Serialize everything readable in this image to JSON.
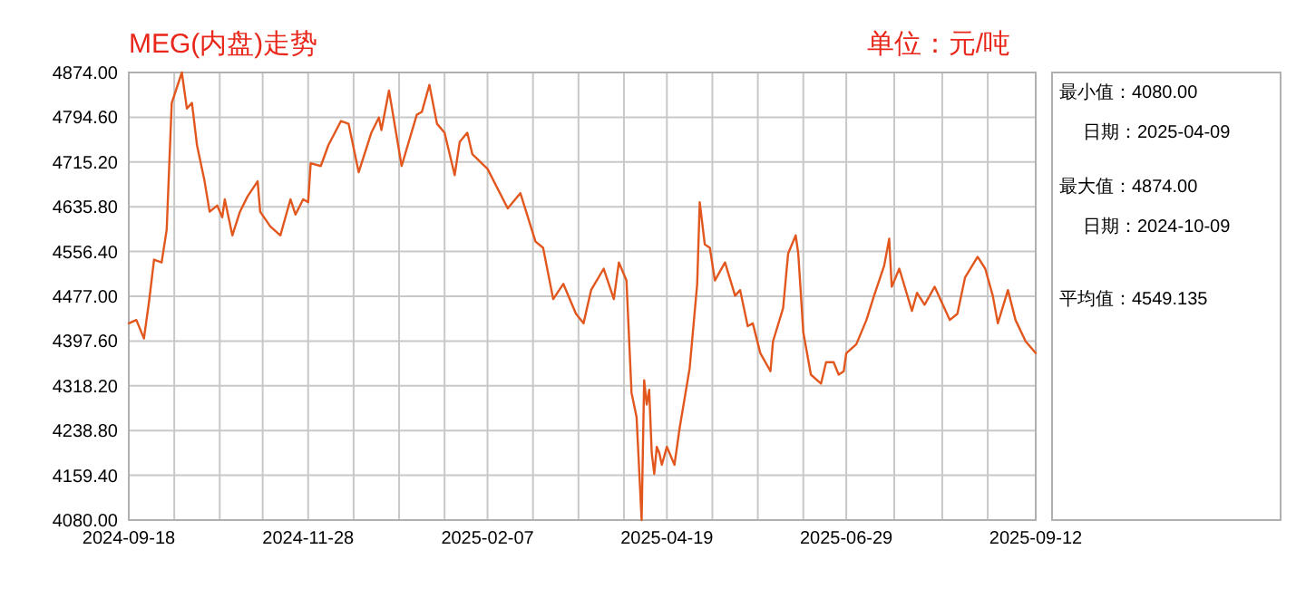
{
  "chart_data": {
    "type": "line",
    "title": "MEG(内盘)走势",
    "subtitle": "单位：元/吨",
    "annotations": [
      "最小值：4080.00",
      "日期：2025-04-09",
      "最大值：4874.00",
      "日期：2024-10-09",
      "平均值：4549.135"
    ],
    "x": [
      "2024-09-18",
      "2024-09-21",
      "2024-09-24",
      "2024-09-26",
      "2024-09-28",
      "2024-10-01",
      "2024-10-03",
      "2024-10-05",
      "2024-10-09",
      "2024-10-11",
      "2024-10-13",
      "2024-10-15",
      "2024-10-18",
      "2024-10-20",
      "2024-10-23",
      "2024-10-25",
      "2024-10-26",
      "2024-10-29",
      "2024-11-01",
      "2024-11-04",
      "2024-11-08",
      "2024-11-09",
      "2024-11-13",
      "2024-11-17",
      "2024-11-21",
      "2024-11-23",
      "2024-11-26",
      "2024-11-28",
      "2024-11-29",
      "2024-12-03",
      "2024-12-06",
      "2024-12-11",
      "2024-12-14",
      "2024-12-18",
      "2024-12-23",
      "2024-12-26",
      "2024-12-27",
      "2024-12-30",
      "2025-01-04",
      "2025-01-10",
      "2025-01-12",
      "2025-01-15",
      "2025-01-18",
      "2025-01-21",
      "2025-01-25",
      "2025-01-27",
      "2025-01-30",
      "2025-02-01",
      "2025-02-07",
      "2025-02-15",
      "2025-02-20",
      "2025-02-26",
      "2025-03-01",
      "2025-03-05",
      "2025-03-09",
      "2025-03-14",
      "2025-03-17",
      "2025-03-20",
      "2025-03-25",
      "2025-03-29",
      "2025-03-31",
      "2025-04-03",
      "2025-04-05",
      "2025-04-07",
      "2025-04-09",
      "2025-04-10",
      "2025-04-11",
      "2025-04-12",
      "2025-04-13",
      "2025-04-14",
      "2025-04-15",
      "2025-04-16",
      "2025-04-17",
      "2025-04-19",
      "2025-04-22",
      "2025-04-24",
      "2025-04-28",
      "2025-05-01",
      "2025-05-02",
      "2025-05-04",
      "2025-05-06",
      "2025-05-08",
      "2025-05-12",
      "2025-05-16",
      "2025-05-18",
      "2025-05-21",
      "2025-05-23",
      "2025-05-26",
      "2025-05-30",
      "2025-05-31",
      "2025-06-04",
      "2025-06-06",
      "2025-06-09",
      "2025-06-10",
      "2025-06-12",
      "2025-06-15",
      "2025-06-19",
      "2025-06-21",
      "2025-06-24",
      "2025-06-26",
      "2025-06-28",
      "2025-06-29",
      "2025-07-03",
      "2025-07-07",
      "2025-07-10",
      "2025-07-14",
      "2025-07-16",
      "2025-07-17",
      "2025-07-20",
      "2025-07-25",
      "2025-07-27",
      "2025-07-30",
      "2025-08-03",
      "2025-08-09",
      "2025-08-12",
      "2025-08-15",
      "2025-08-20",
      "2025-08-23",
      "2025-08-26",
      "2025-08-28",
      "2025-09-01",
      "2025-09-04",
      "2025-09-08",
      "2025-09-12"
    ],
    "series": [
      {
        "color": "#e2571e",
        "values": [
          4429,
          4435,
          4402,
          4467,
          4542,
          4537,
          4595,
          4820,
          4874,
          4810,
          4820,
          4745,
          4681,
          4627,
          4638,
          4617,
          4649,
          4585,
          4627,
          4654,
          4681,
          4627,
          4601,
          4585,
          4649,
          4622,
          4649,
          4644,
          4713,
          4708,
          4745,
          4788,
          4783,
          4697,
          4767,
          4794,
          4772,
          4842,
          4708,
          4799,
          4804,
          4852,
          4783,
          4767,
          4692,
          4751,
          4767,
          4729,
          4703,
          4633,
          4660,
          4574,
          4563,
          4472,
          4499,
          4446,
          4429,
          4488,
          4526,
          4472,
          4537,
          4505,
          4306,
          4263,
          4080,
          4328,
          4285,
          4311,
          4199,
          4162,
          4210,
          4199,
          4178,
          4210,
          4178,
          4242,
          4349,
          4499,
          4644,
          4569,
          4563,
          4505,
          4537,
          4478,
          4488,
          4424,
          4429,
          4376,
          4344,
          4397,
          4456,
          4553,
          4585,
          4553,
          4413,
          4338,
          4322,
          4360,
          4360,
          4338,
          4344,
          4376,
          4392,
          4435,
          4478,
          4531,
          4579,
          4494,
          4526,
          4451,
          4483,
          4462,
          4494,
          4435,
          4446,
          4510,
          4547,
          4526,
          4478,
          4429,
          4488,
          4435,
          4397,
          4376
        ]
      }
    ],
    "xlim": [
      "2024-09-18",
      "2025-09-12"
    ],
    "xticks": [
      {
        "value": "2024-09-18",
        "label": "2024-09-18"
      },
      {
        "value": "2024-10-06",
        "label": null
      },
      {
        "value": "2024-10-24",
        "label": null
      },
      {
        "value": "2024-11-10",
        "label": null
      },
      {
        "value": "2024-11-28",
        "label": "2024-11-28"
      },
      {
        "value": "2024-12-16",
        "label": null
      },
      {
        "value": "2025-01-03",
        "label": null
      },
      {
        "value": "2025-01-21",
        "label": null
      },
      {
        "value": "2025-02-07",
        "label": "2025-02-07"
      },
      {
        "value": "2025-02-25",
        "label": null
      },
      {
        "value": "2025-03-15",
        "label": null
      },
      {
        "value": "2025-04-02",
        "label": null
      },
      {
        "value": "2025-04-19",
        "label": "2025-04-19"
      },
      {
        "value": "2025-05-07",
        "label": null
      },
      {
        "value": "2025-05-25",
        "label": null
      },
      {
        "value": "2025-06-12",
        "label": null
      },
      {
        "value": "2025-06-29",
        "label": "2025-06-29"
      },
      {
        "value": "2025-07-18",
        "label": null
      },
      {
        "value": "2025-08-06",
        "label": null
      },
      {
        "value": "2025-08-24",
        "label": null
      },
      {
        "value": "2025-09-12",
        "label": "2025-09-12"
      }
    ],
    "ylim": [
      4080,
      4874
    ],
    "yticks": [
      {
        "value": 4080,
        "label": "4080.00"
      },
      {
        "value": 4159.4,
        "label": "4159.40"
      },
      {
        "value": 4238.8,
        "label": "4238.80"
      },
      {
        "value": 4318.2,
        "label": "4318.20"
      },
      {
        "value": 4397.6,
        "label": "4397.60"
      },
      {
        "value": 4477,
        "label": "4477.00"
      },
      {
        "value": 4556.4,
        "label": "4556.40"
      },
      {
        "value": 4635.8,
        "label": "4635.80"
      },
      {
        "value": 4715.2,
        "label": "4715.20"
      },
      {
        "value": 4794.6,
        "label": "4794.60"
      },
      {
        "value": 4874,
        "label": "4874.00"
      }
    ],
    "grid": true,
    "marker": "none",
    "line_style": "solid"
  }
}
